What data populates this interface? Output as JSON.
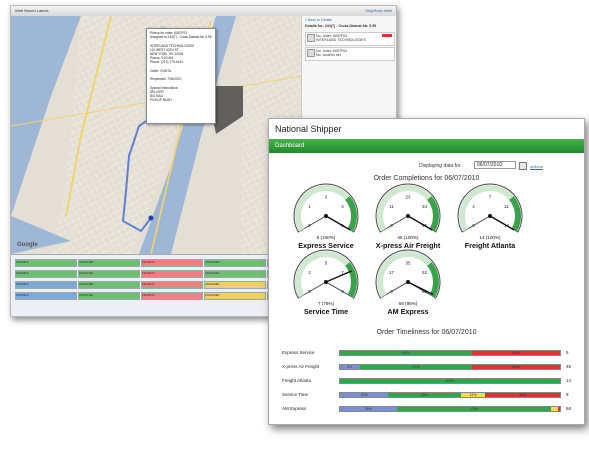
{
  "map_window": {
    "title": "Web Based Labels",
    "brand": "ShipRush Web",
    "side_header": "Details for: 244(7) - Cross,Diamat-hb: 5.95",
    "back_link": "« Back to Details",
    "side_items": [
      {
        "label": "No. order: 6057F03",
        "sub": "INTERLAND TECHNOLOGIES",
        "badge": ""
      },
      {
        "label": "No. order: 6057F04",
        "sub": "No. location set",
        "badge": ""
      }
    ],
    "popup_lines": [
      "Pickup for order: 6057F03",
      "Assigned to 244(7) - Cross,Diamat-hb: 5.95",
      "",
      "INTERLAND TECHNOLOGIES",
      "110 WEST 40TH ST",
      "NEW YORK, NY 10018",
      "Pickup: 9:00 AM",
      "Phone: (212) 779-4444",
      "",
      "Caller: GUNTA",
      "",
      "Requested: 7/04/2010",
      "",
      "Special instructions",
      "DELIVER",
      "BIG BAG",
      "PICKUP RUSH"
    ],
    "status_chips": [
      {
        "label": "PENDING",
        "color": "#6fbf73"
      },
      {
        "label": "ASSIGNED",
        "color": "#6fbf73"
      },
      {
        "label": "PENDING",
        "color": "#f08080"
      },
      {
        "label": "ASSIGNED",
        "color": "#6fbf73"
      },
      {
        "label": "PENDING",
        "color": "#6fbf73"
      },
      {
        "label": "ASSIGNED",
        "color": "#f08080"
      },
      {
        "label": "PENDING",
        "color": "#7fa8d8"
      },
      {
        "label": "ASSIGNED",
        "color": "#6fbf73"
      },
      {
        "label": "PENDING",
        "color": "#f08080"
      },
      {
        "label": "ASSIGNED",
        "color": "#f0d060"
      },
      {
        "label": "PENDING",
        "color": "#6fbf73"
      },
      {
        "label": "ASSIGNED",
        "color": "#f08080"
      }
    ],
    "google_logo": "Google"
  },
  "dashboard": {
    "app_title": "National Shipper",
    "tab_label": "Dashboard",
    "display_label": "Displaying data for",
    "date_value": "06/07/2010",
    "options_label": "options",
    "completions_title": "Order Completions for 06/07/2010",
    "timeliness_title": "Order Timeliness for 06/07/2010",
    "gauges": [
      {
        "name": "Express Service",
        "count_label": "5 (100%)",
        "ticks": [
          "0",
          "1",
          "3",
          "4",
          "5"
        ],
        "value": 5,
        "max": 5
      },
      {
        "name": "X-press Air Freight",
        "count_label": "45 (100%)",
        "ticks": [
          "0",
          "11",
          "23",
          "34",
          "45"
        ],
        "value": 45,
        "max": 45
      },
      {
        "name": "Freight Atlanta",
        "count_label": "14 (100%)",
        "ticks": [
          "0",
          "4",
          "7",
          "11",
          "14"
        ],
        "value": 14,
        "max": 14
      },
      {
        "name": "Service Time",
        "count_label": "7 (78%)",
        "ticks": [
          "0",
          "2",
          "5",
          "7",
          "9"
        ],
        "value": 7,
        "max": 9
      },
      {
        "name": "AM Express",
        "count_label": "68 (99%)",
        "ticks": [
          "0",
          "17",
          "35",
          "52",
          "69"
        ],
        "value": 68,
        "max": 69
      }
    ],
    "timeliness_rows": [
      {
        "label": "Express Service",
        "total": "5",
        "segments": [
          {
            "pct": 0.6,
            "color": "#2ea84a",
            "label": "60%"
          },
          {
            "pct": 0.4,
            "color": "#e03030",
            "label": "40%"
          }
        ]
      },
      {
        "label": "X-press Air Freight",
        "total": "45",
        "segments": [
          {
            "pct": 0.09,
            "color": "#7a8fd6",
            "label": "9%"
          },
          {
            "pct": 0.51,
            "color": "#2ea84a",
            "label": "51%"
          },
          {
            "pct": 0.4,
            "color": "#e03030",
            "label": "40%"
          }
        ]
      },
      {
        "label": "Freight Atlanta",
        "total": "14",
        "segments": [
          {
            "pct": 1.0,
            "color": "#2ea84a",
            "label": "100%"
          }
        ]
      },
      {
        "label": "Service Time",
        "total": "9",
        "segments": [
          {
            "pct": 0.22,
            "color": "#7a8fd6",
            "label": "22%"
          },
          {
            "pct": 0.33,
            "color": "#2ea84a",
            "label": "33%"
          },
          {
            "pct": 0.11,
            "color": "#f0e040",
            "label": "11%"
          },
          {
            "pct": 0.34,
            "color": "#e03030",
            "label": "34%"
          }
        ]
      },
      {
        "label": "AM Express",
        "total": "68",
        "segments": [
          {
            "pct": 0.26,
            "color": "#7a8fd6",
            "label": "26%"
          },
          {
            "pct": 0.7,
            "color": "#2ea84a",
            "label": "70%"
          },
          {
            "pct": 0.03,
            "color": "#f0e040",
            "label": "3%"
          },
          {
            "pct": 0.01,
            "color": "#e03030",
            "label": "1%"
          }
        ]
      }
    ],
    "colors": {
      "accent_green": "#2a9a3a",
      "gauge_green": "#3aa34a",
      "early": "#7a8fd6",
      "on_time": "#2ea84a",
      "late_warning": "#f0e040",
      "late": "#e03030"
    }
  }
}
